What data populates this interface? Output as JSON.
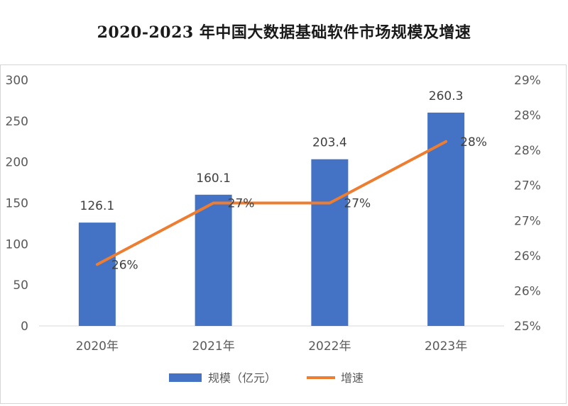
{
  "chart_data": {
    "type": "bar+line",
    "title": "2020-2023 年中国大数据基础软件市场规模及增速",
    "categories": [
      "2020年",
      "2021年",
      "2022年",
      "2023年"
    ],
    "series": [
      {
        "name": "规模（亿元）",
        "type": "bar",
        "axis": "left",
        "color": "#4472C4",
        "values": [
          126.1,
          160.1,
          203.4,
          260.3
        ],
        "labels": [
          "126.1",
          "160.1",
          "203.4",
          "260.3"
        ]
      },
      {
        "name": "增速",
        "type": "line",
        "axis": "right",
        "color": "#ED7D31",
        "values": [
          0.26,
          0.27,
          0.27,
          0.28
        ],
        "labels": [
          "26%",
          "27%",
          "27%",
          "28%"
        ]
      }
    ],
    "y_left": {
      "min": 0,
      "max": 300,
      "ticks": [
        0,
        50,
        100,
        150,
        200,
        250,
        300
      ],
      "tick_labels": [
        "0",
        "50",
        "100",
        "150",
        "200",
        "250",
        "300"
      ]
    },
    "y_right": {
      "min": 0.25,
      "max": 0.29,
      "tick_labels": [
        "25%",
        "26%",
        "26%",
        "27%",
        "27%",
        "28%",
        "28%",
        "29%"
      ]
    },
    "legend_position": "bottom",
    "grid": false
  }
}
